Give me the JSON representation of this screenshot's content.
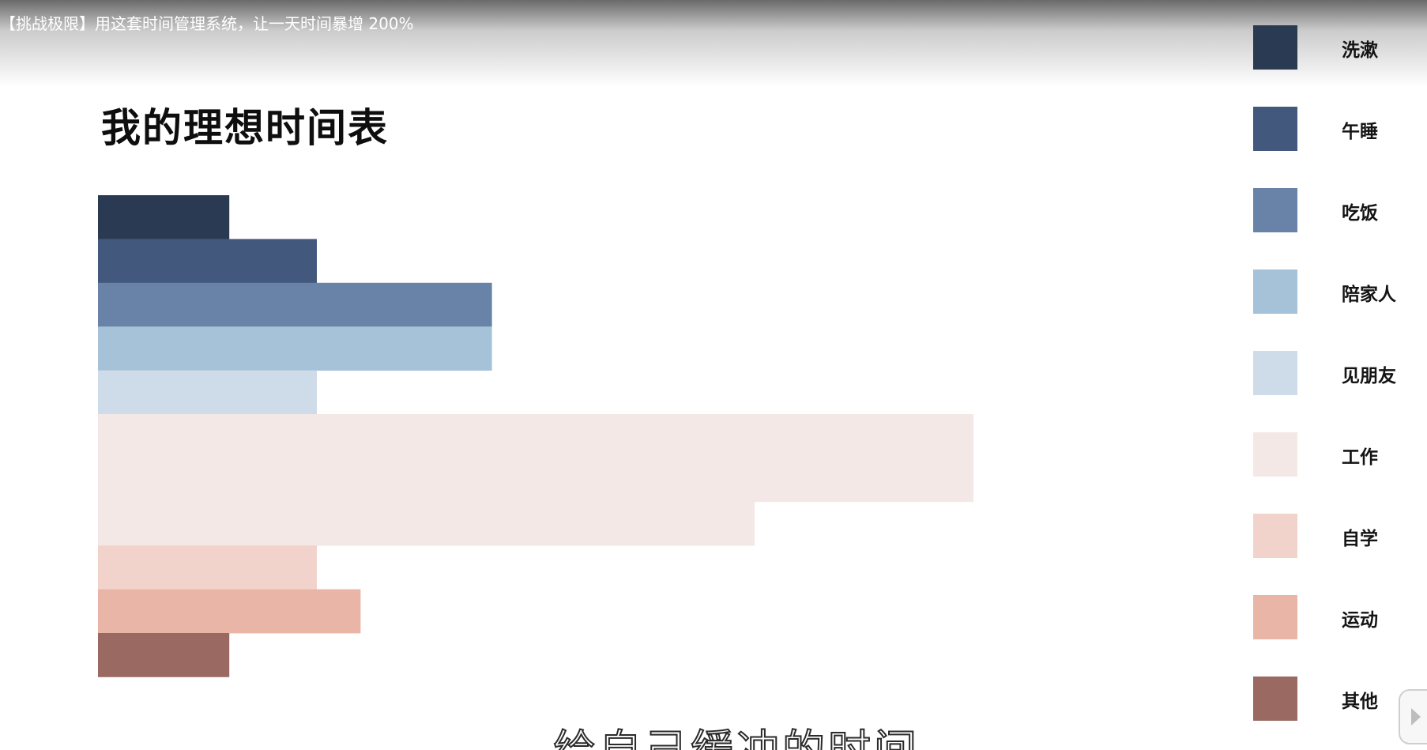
{
  "video": {
    "title": "【挑战极限】用这套时间管理系统，让一天时间暴增 200%"
  },
  "slide": {
    "title": "我的理想时间表",
    "subtitle": "给自己缓冲的时间"
  },
  "chart_data": {
    "type": "bar",
    "orientation": "horizontal",
    "title": "我的理想时间表",
    "xlabel": "",
    "ylabel": "",
    "grid": false,
    "legend_position": "right",
    "categories": [
      "洗漱",
      "午睡",
      "吃饭",
      "陪家人",
      "见朋友",
      "工作",
      "工作",
      "自学",
      "运动",
      "其他"
    ],
    "values": [
      3,
      5,
      9,
      9,
      5,
      20,
      15,
      5,
      6,
      3
    ],
    "row_spans": [
      1,
      1,
      1,
      1,
      1,
      2,
      1,
      1,
      1,
      1
    ],
    "colors": [
      "#2a3a52",
      "#42597d",
      "#6983a8",
      "#a6c2d8",
      "#cedbe8",
      "#f4e8e6",
      "#f4e8e6",
      "#f2d3cc",
      "#e9b5a6",
      "#9a6a62"
    ],
    "legend": [
      {
        "label": "洗漱",
        "color": "#2a3a52"
      },
      {
        "label": "午睡",
        "color": "#42597d"
      },
      {
        "label": "吃饭",
        "color": "#6983a8"
      },
      {
        "label": "陪家人",
        "color": "#a6c2d8"
      },
      {
        "label": "见朋友",
        "color": "#cedbe8"
      },
      {
        "label": "工作",
        "color": "#f4e8e6"
      },
      {
        "label": "自学",
        "color": "#f2d3cc"
      },
      {
        "label": "运动",
        "color": "#e9b5a6"
      },
      {
        "label": "其他",
        "color": "#9a6a62"
      }
    ]
  }
}
